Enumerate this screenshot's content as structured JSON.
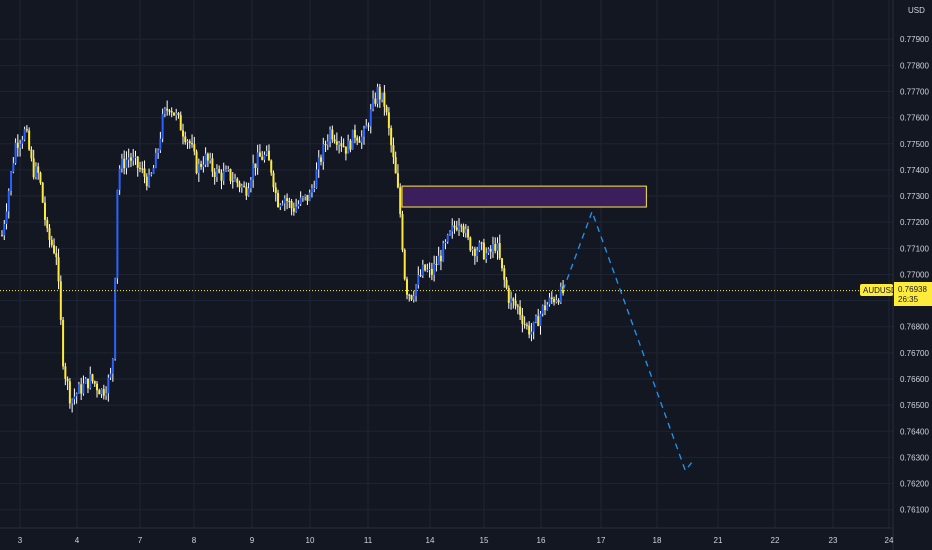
{
  "chart_data": {
    "type": "candlestick",
    "symbol": "AUDUSD",
    "currency": "USD",
    "last_price": "0.76938",
    "countdown": "26:35",
    "ylim": [
      0.7603,
      0.7805
    ],
    "grid": true,
    "colors": {
      "background": "#131722",
      "grid": "#1f2433",
      "up": "#2962ff",
      "down": "#ffeb3b",
      "up_wick": "#ffffff",
      "down_wick": "#ffffff",
      "price_line": "#ffeb3b",
      "zone_fill": "#3b1e5c",
      "zone_border": "#ffeb3b",
      "projection": "#2196f3",
      "axis_text": "#d1d4dc"
    },
    "y_ticks": [
      "0.77900",
      "0.77800",
      "0.77700",
      "0.77600",
      "0.77500",
      "0.77400",
      "0.77300",
      "0.77200",
      "0.77100",
      "0.77000",
      "0.76900",
      "0.76800",
      "0.76700",
      "0.76600",
      "0.76500",
      "0.76400",
      "0.76300",
      "0.76200",
      "0.76100"
    ],
    "x_ticks": [
      "3",
      "4",
      "7",
      "8",
      "9",
      "10",
      "11",
      "14",
      "15",
      "16",
      "17",
      "18",
      "21",
      "22",
      "23",
      "24"
    ],
    "path": [
      [
        0,
        0.7715
      ],
      [
        1.5,
        0.775
      ],
      [
        2.6,
        0.7755
      ],
      [
        3.4,
        0.774
      ],
      [
        4.1,
        0.7738
      ],
      [
        5.0,
        0.7715
      ],
      [
        6.0,
        0.7708
      ],
      [
        6.8,
        0.7665
      ],
      [
        7.6,
        0.7652
      ],
      [
        8.6,
        0.7656
      ],
      [
        9.8,
        0.766
      ],
      [
        11.1,
        0.7655
      ],
      [
        12.2,
        0.7662
      ],
      [
        12.8,
        0.774
      ],
      [
        14.0,
        0.7745
      ],
      [
        15.3,
        0.774
      ],
      [
        16.3,
        0.7735
      ],
      [
        17.1,
        0.7745
      ],
      [
        17.8,
        0.776
      ],
      [
        18.5,
        0.7765
      ],
      [
        19.3,
        0.776
      ],
      [
        20.0,
        0.7755
      ],
      [
        20.8,
        0.775
      ],
      [
        21.6,
        0.774
      ],
      [
        22.4,
        0.7745
      ],
      [
        23.3,
        0.774
      ],
      [
        24.1,
        0.7738
      ],
      [
        25.0,
        0.7738
      ],
      [
        26.1,
        0.7735
      ],
      [
        26.9,
        0.7732
      ],
      [
        27.8,
        0.7742
      ],
      [
        28.6,
        0.7745
      ],
      [
        29.2,
        0.7745
      ],
      [
        29.8,
        0.774
      ],
      [
        30.4,
        0.7728
      ],
      [
        31.2,
        0.773
      ],
      [
        32.1,
        0.7725
      ],
      [
        33.1,
        0.7728
      ],
      [
        34.0,
        0.773
      ],
      [
        35.0,
        0.7742
      ],
      [
        36.2,
        0.7755
      ],
      [
        37.2,
        0.7752
      ],
      [
        38.1,
        0.7748
      ],
      [
        39.0,
        0.7754
      ],
      [
        39.9,
        0.7752
      ],
      [
        40.6,
        0.776
      ],
      [
        41.5,
        0.777
      ],
      [
        42.3,
        0.7765
      ],
      [
        43.4,
        0.774
      ],
      [
        43.9,
        0.7728
      ],
      [
        44.6,
        0.7695
      ],
      [
        45.2,
        0.7692
      ],
      [
        45.9,
        0.7697
      ],
      [
        46.6,
        0.7702
      ],
      [
        47.4,
        0.77
      ],
      [
        48.1,
        0.7705
      ],
      [
        48.9,
        0.771
      ],
      [
        49.8,
        0.7717
      ],
      [
        50.7,
        0.7722
      ],
      [
        51.4,
        0.7713
      ],
      [
        52.1,
        0.771
      ],
      [
        52.8,
        0.771
      ],
      [
        53.7,
        0.7707
      ],
      [
        54.6,
        0.7712
      ],
      [
        55.3,
        0.77
      ],
      [
        56.1,
        0.769
      ],
      [
        57.1,
        0.7687
      ],
      [
        57.9,
        0.768
      ],
      [
        58.6,
        0.7678
      ],
      [
        59.6,
        0.7686
      ],
      [
        60.6,
        0.769
      ],
      [
        61.4,
        0.7692
      ],
      [
        62.0,
        0.7693
      ]
    ],
    "zone": {
      "x_from": 44.2,
      "x_to": 71.2,
      "y_from": 0.77258,
      "y_to": 0.77338
    },
    "projection": [
      [
        62.0,
        0.7694
      ],
      [
        65.2,
        0.7724
      ],
      [
        75.5,
        0.7625
      ],
      [
        76.2,
        0.7628
      ]
    ]
  }
}
